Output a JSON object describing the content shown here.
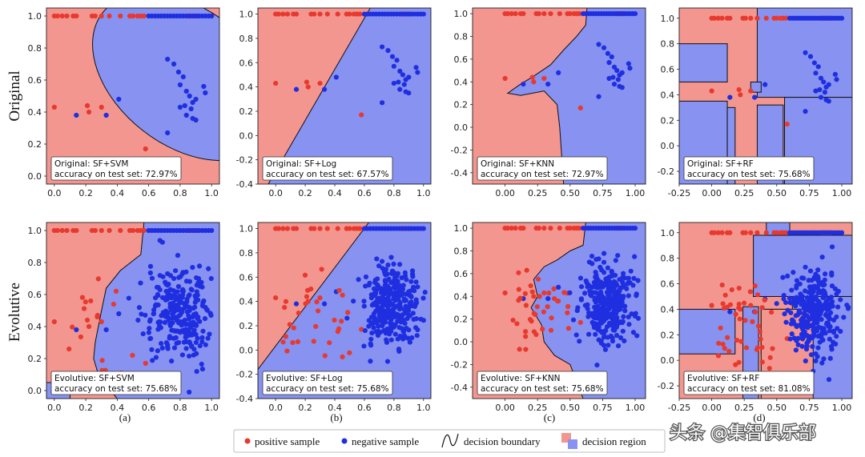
{
  "colors": {
    "positive": "#e8392e",
    "negative": "#1f2fe0",
    "region_positive": "#f3968f",
    "region_negative": "#8792f1",
    "boundary": "#111111"
  },
  "row_labels": [
    "Original",
    "Evolutive"
  ],
  "subplot_labels": [
    "(a)",
    "(b)",
    "(c)",
    "(d)"
  ],
  "legend": {
    "positive": "positive sample",
    "negative": "negative sample",
    "boundary": "decision boundary",
    "region": "decision region"
  },
  "watermark": "头条 @集智俱乐部",
  "chart_data": [
    {
      "type": "scatter",
      "row": 0,
      "col": 0,
      "model": "SF+SVM",
      "title_line": "Original: SF+SVM",
      "accuracy_line": "accuracy on test set: 72.97%",
      "xlim": [
        -0.05,
        1.05
      ],
      "ylim": [
        -0.05,
        1.05
      ],
      "xticks": [
        0.0,
        0.2,
        0.4,
        0.6,
        0.8,
        1.0
      ],
      "yticks": [
        0.0,
        0.2,
        0.4,
        0.6,
        0.8,
        1.0
      ],
      "region": "ellipse",
      "n_extra": 0,
      "seed": 11
    },
    {
      "type": "scatter",
      "row": 0,
      "col": 1,
      "model": "SF+Log",
      "title_line": "Original: SF+Log",
      "accuracy_line": "accuracy on test set: 67.57%",
      "xlim": [
        -0.12,
        1.05
      ],
      "ylim": [
        -0.4,
        1.05
      ],
      "xticks": [
        0.0,
        0.2,
        0.4,
        0.6,
        0.8,
        1.0
      ],
      "yticks": [
        -0.4,
        -0.2,
        0.0,
        0.2,
        0.4,
        0.6,
        0.8,
        1.0
      ],
      "region": "line",
      "boundary": [
        [
          -0.05,
          -0.4
        ],
        [
          0.64,
          1.05
        ]
      ],
      "n_extra": 0,
      "seed": 12
    },
    {
      "type": "scatter",
      "row": 0,
      "col": 2,
      "model": "SF+KNN",
      "title_line": "Original: SF+KNN",
      "accuracy_line": "accuracy on test set: 72.97%",
      "xlim": [
        -0.25,
        1.08
      ],
      "ylim": [
        -0.5,
        1.05
      ],
      "xticks": [
        0.0,
        0.25,
        0.5,
        0.75,
        1.0
      ],
      "tick_labels_x": [
        "0.00",
        "0.25",
        "0.50",
        "0.75",
        "1.00"
      ],
      "yticks": [
        -0.4,
        -0.2,
        0.0,
        0.2,
        0.4,
        0.6,
        0.8,
        1.0
      ],
      "region": "poly",
      "polygon": [
        [
          1.08,
          1.05
        ],
        [
          0.63,
          1.05
        ],
        [
          0.62,
          0.9
        ],
        [
          0.55,
          0.8
        ],
        [
          0.45,
          0.68
        ],
        [
          0.35,
          0.55
        ],
        [
          0.22,
          0.45
        ],
        [
          0.12,
          0.38
        ],
        [
          0.02,
          0.3
        ],
        [
          0.12,
          0.28
        ],
        [
          0.3,
          0.32
        ],
        [
          0.4,
          0.2
        ],
        [
          0.42,
          0.0
        ],
        [
          0.45,
          -0.5
        ],
        [
          1.08,
          -0.5
        ]
      ],
      "n_extra": 0,
      "seed": 13
    },
    {
      "type": "scatter",
      "row": 0,
      "col": 3,
      "model": "SF+RF",
      "title_line": "Original: SF+RF",
      "accuracy_line": "accuracy on test set: 75.68%",
      "xlim": [
        -0.25,
        1.08
      ],
      "ylim": [
        -0.3,
        1.08
      ],
      "xticks": [
        -0.25,
        0.0,
        0.25,
        0.5,
        0.75,
        1.0
      ],
      "tick_labels_x": [
        "-0.25",
        "0.00",
        "0.25",
        "0.50",
        "0.75",
        "1.00"
      ],
      "yticks": [
        -0.2,
        0.0,
        0.2,
        0.4,
        0.6,
        0.8,
        1.0
      ],
      "region": "rects_orig",
      "n_extra": 0,
      "seed": 14
    },
    {
      "type": "scatter",
      "row": 1,
      "col": 0,
      "model": "SF+SVM",
      "title_line": "Evolutive: SF+SVM",
      "accuracy_line": "accuracy on test set: 75.68%",
      "xlim": [
        -0.05,
        1.05
      ],
      "ylim": [
        -0.05,
        1.05
      ],
      "xticks": [
        0.0,
        0.2,
        0.4,
        0.6,
        0.8,
        1.0
      ],
      "yticks": [
        0.0,
        0.2,
        0.4,
        0.6,
        0.8,
        1.0
      ],
      "region": "svm_evo",
      "n_extra": 260,
      "seed": 21
    },
    {
      "type": "scatter",
      "row": 1,
      "col": 1,
      "model": "SF+Log",
      "title_line": "Evolutive: SF+Log",
      "accuracy_line": "accuracy on test set: 75.68%",
      "xlim": [
        -0.12,
        1.05
      ],
      "ylim": [
        -0.4,
        1.05
      ],
      "xticks": [
        0.0,
        0.2,
        0.4,
        0.6,
        0.8,
        1.0
      ],
      "yticks": [
        -0.4,
        -0.2,
        0.0,
        0.2,
        0.4,
        0.6,
        0.8,
        1.0
      ],
      "region": "line",
      "boundary": [
        [
          -0.12,
          -0.16
        ],
        [
          0.63,
          1.05
        ]
      ],
      "n_extra": 320,
      "seed": 22
    },
    {
      "type": "scatter",
      "row": 1,
      "col": 2,
      "model": "SF+KNN",
      "title_line": "Evolutive: SF+KNN",
      "accuracy_line": "accuracy on test set: 75.68%",
      "xlim": [
        -0.25,
        1.08
      ],
      "ylim": [
        -0.5,
        1.05
      ],
      "xticks": [
        0.0,
        0.25,
        0.5,
        0.75,
        1.0
      ],
      "tick_labels_x": [
        "0.00",
        "0.25",
        "0.50",
        "0.75",
        "1.00"
      ],
      "yticks": [
        -0.4,
        -0.2,
        0.0,
        0.2,
        0.4,
        0.6,
        0.8,
        1.0
      ],
      "region": "poly",
      "polygon": [
        [
          1.08,
          1.05
        ],
        [
          0.62,
          1.05
        ],
        [
          0.6,
          0.85
        ],
        [
          0.5,
          0.8
        ],
        [
          0.4,
          0.72
        ],
        [
          0.3,
          0.66
        ],
        [
          0.22,
          0.55
        ],
        [
          0.25,
          0.4
        ],
        [
          0.2,
          0.3
        ],
        [
          0.28,
          0.15
        ],
        [
          0.3,
          0.0
        ],
        [
          0.38,
          -0.12
        ],
        [
          0.5,
          -0.2
        ],
        [
          0.55,
          -0.35
        ],
        [
          0.6,
          -0.5
        ],
        [
          1.08,
          -0.5
        ]
      ],
      "n_extra": 340,
      "seed": 23
    },
    {
      "type": "scatter",
      "row": 1,
      "col": 3,
      "model": "SF+RF",
      "title_line": "Evolutive: SF+RF",
      "accuracy_line": "accuracy on test set: 81.08%",
      "xlim": [
        -0.25,
        1.08
      ],
      "ylim": [
        -0.3,
        1.08
      ],
      "xticks": [
        -0.25,
        0.0,
        0.25,
        0.5,
        0.75,
        1.0
      ],
      "tick_labels_x": [
        "-0.25",
        "0.00",
        "0.25",
        "0.50",
        "0.75",
        "1.00"
      ],
      "yticks": [
        -0.2,
        0.0,
        0.2,
        0.4,
        0.6,
        0.8,
        1.0
      ],
      "region": "rects_evo",
      "n_extra": 320,
      "seed": 24
    }
  ]
}
